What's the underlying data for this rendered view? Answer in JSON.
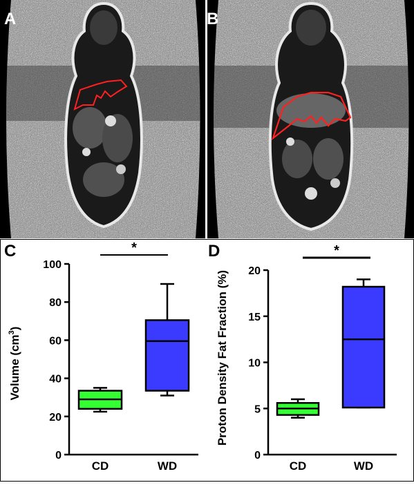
{
  "figure": {
    "panel_labels": [
      "A",
      "B",
      "C",
      "D"
    ]
  },
  "colors": {
    "cd_box": "#33ff33",
    "wd_box": "#3b3bff",
    "roi_outline": "#ff2020"
  },
  "chart_data": [
    {
      "panel": "C",
      "type": "box",
      "ylabel": "Volume (cm",
      "ylabel_sup": "3",
      "ylabel_end": ")",
      "ylim": [
        0,
        100
      ],
      "yticks": [
        0,
        20,
        40,
        60,
        80,
        100
      ],
      "ytick_labels": [
        "0",
        "20",
        "40",
        "60",
        "80",
        "100"
      ],
      "categories": [
        "CD",
        "WD"
      ],
      "boxes": [
        {
          "name": "CD",
          "min": 22.5,
          "q1": 24,
          "median": 29,
          "q3": 33.5,
          "max": 35
        },
        {
          "name": "WD",
          "min": 31,
          "q1": 33.5,
          "median": 59.5,
          "q3": 70.5,
          "max": 89.5
        }
      ],
      "significance": "*"
    },
    {
      "panel": "D",
      "type": "box",
      "ylabel": "Proton Density Fat Fraction (%)",
      "ylim": [
        0,
        20
      ],
      "yticks": [
        0,
        5,
        10,
        15,
        20
      ],
      "ytick_labels": [
        "0",
        "5",
        "10",
        "15",
        "20"
      ],
      "categories": [
        "CD",
        "WD"
      ],
      "boxes": [
        {
          "name": "CD",
          "min": 4,
          "q1": 4.3,
          "median": 5,
          "q3": 5.6,
          "max": 6
        },
        {
          "name": "WD",
          "min": 5.1,
          "q1": 5.1,
          "median": 12.5,
          "q3": 18.2,
          "max": 19
        }
      ],
      "significance": "*"
    }
  ]
}
